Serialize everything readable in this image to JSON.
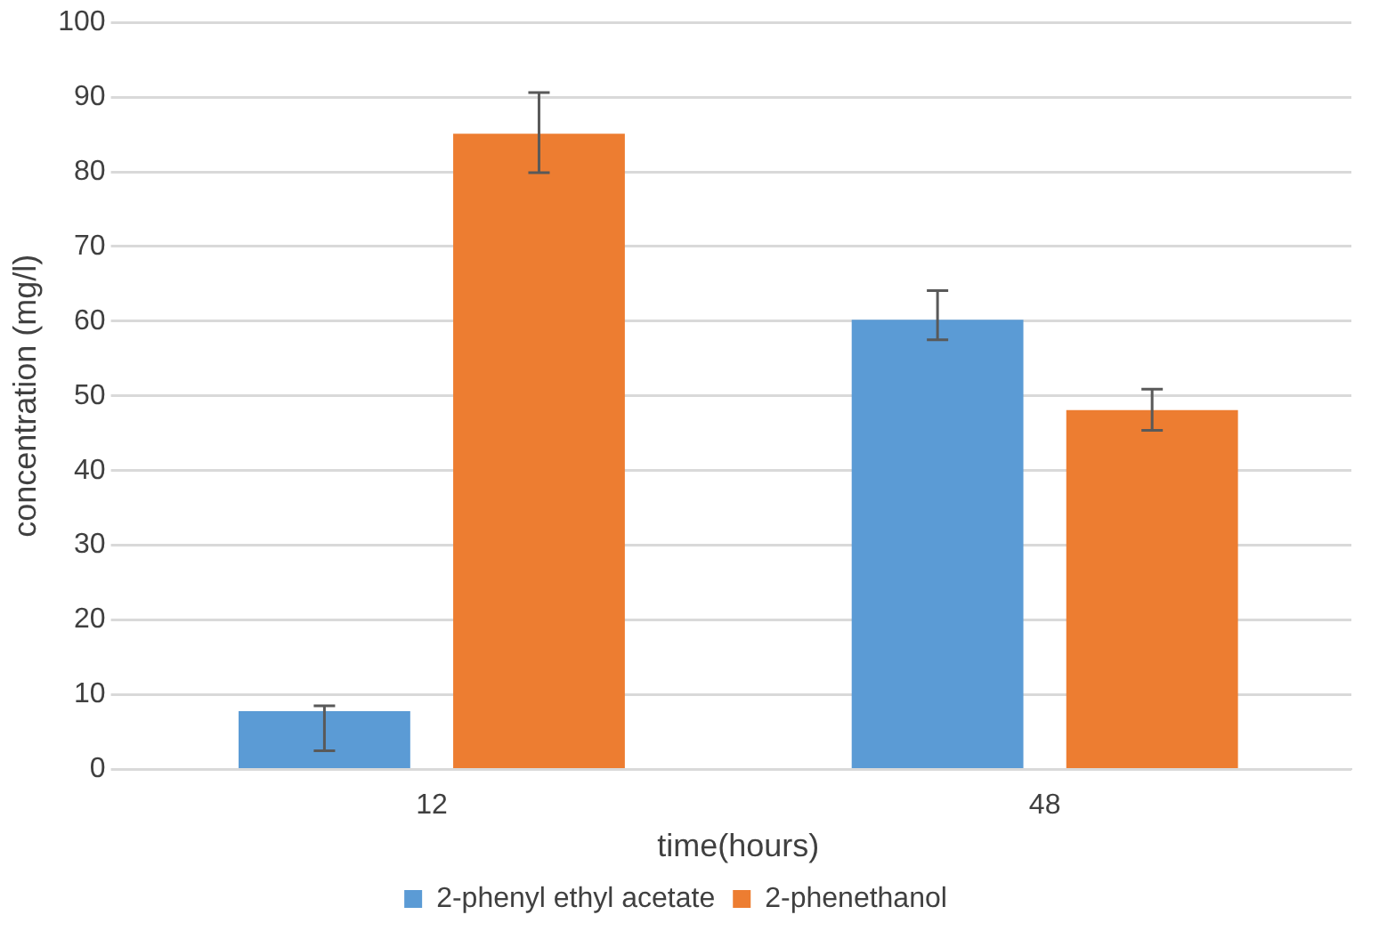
{
  "chart_data": {
    "type": "bar",
    "xlabel": "time(hours)",
    "ylabel": "concentration (mg/l)",
    "categories": [
      "12",
      "48"
    ],
    "series": [
      {
        "name": "2-phenyl ethyl acetate",
        "color": "#5b9bd5",
        "values": [
          7.8,
          60.2
        ],
        "errors": [
          [
            2.5,
            8.5
          ],
          [
            57.5,
            64.1
          ]
        ]
      },
      {
        "name": "2-phenethanol",
        "color": "#ed7d31",
        "values": [
          85.1,
          48.1
        ],
        "errors": [
          [
            79.9,
            90.6
          ],
          [
            45.4,
            50.9
          ]
        ]
      }
    ],
    "ylim": [
      0,
      100
    ],
    "yticks": [
      0,
      10,
      20,
      30,
      40,
      50,
      60,
      70,
      80,
      90,
      100
    ],
    "grid": "y",
    "legend": "bottom"
  }
}
